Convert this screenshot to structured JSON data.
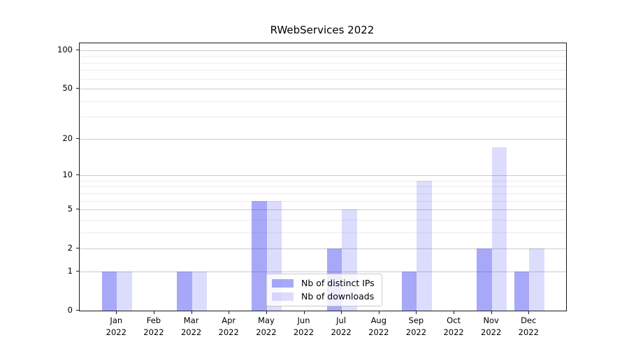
{
  "title": "RWebServices 2022",
  "legend": {
    "entries": [
      {
        "label": "Nb of distinct IPs",
        "color": "rgba(61,61,240,0.45)"
      },
      {
        "label": "Nb of downloads",
        "color": "rgba(61,61,240,0.18)"
      }
    ],
    "position": "lower center"
  },
  "chart_data": {
    "type": "bar",
    "title": "RWebServices 2022",
    "categories": [
      "Jan 2022",
      "Feb 2022",
      "Mar 2022",
      "Apr 2022",
      "May 2022",
      "Jun 2022",
      "Jul 2022",
      "Aug 2022",
      "Sep 2022",
      "Oct 2022",
      "Nov 2022",
      "Dec 2022"
    ],
    "series": [
      {
        "name": "Nb of distinct IPs",
        "color": "rgba(61,61,240,0.45)",
        "values": [
          1,
          0,
          1,
          0,
          6,
          0,
          2,
          0,
          1,
          0,
          2,
          1
        ]
      },
      {
        "name": "Nb of downloads",
        "color": "rgba(61,61,240,0.18)",
        "values": [
          1,
          0,
          1,
          0,
          6,
          0,
          5,
          0,
          9,
          0,
          17,
          2
        ]
      }
    ],
    "xlabel": "",
    "ylabel": "",
    "yscale": "log1p",
    "ylim": [
      0,
      113
    ],
    "y_major_ticks": [
      0,
      1,
      2,
      5,
      10,
      20,
      50,
      100
    ],
    "y_minor_ticks": [
      3,
      4,
      6,
      7,
      8,
      9,
      30,
      40,
      60,
      70,
      80,
      90
    ],
    "grid": "horizontal",
    "legend_position": "lower center"
  }
}
